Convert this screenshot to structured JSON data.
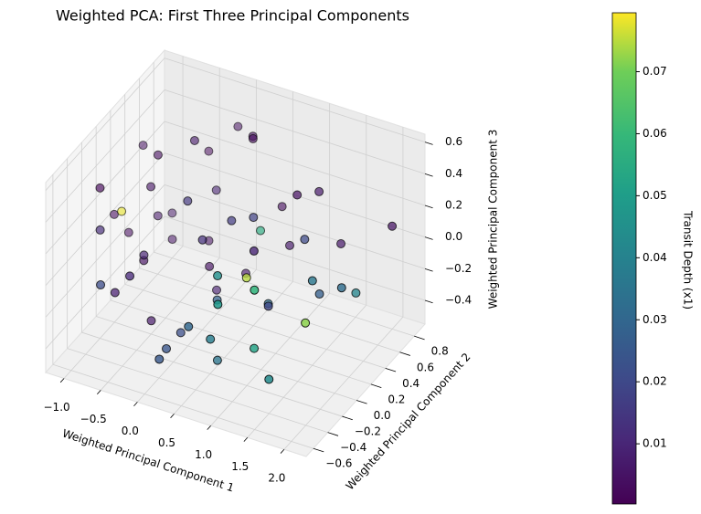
{
  "chart_data": {
    "type": "scatter3d",
    "title": "Weighted PCA: First Three Principal Components",
    "xlabel": "Weighted Principal Component 1",
    "ylabel": "Weighted Principal Component 2",
    "zlabel": "Weighted Principal Component 3",
    "x": [
      -1.1,
      -0.9,
      -0.7,
      -1.0,
      -0.8,
      -0.5,
      -0.3,
      -0.6,
      -1.2,
      -0.4,
      -0.2,
      0.0,
      0.2,
      -0.9,
      -0.6,
      -0.1,
      0.3,
      0.5,
      0.1,
      -0.7,
      -0.3,
      0.4,
      0.6,
      0.8,
      1.0,
      0.2,
      -0.5,
      0.7,
      0.9,
      1.2,
      1.4,
      1.1,
      0.5,
      0.0,
      -0.2,
      1.6,
      1.8,
      1.3,
      0.8,
      1.5,
      2.0,
      0.3,
      0.6,
      1.0,
      -0.8,
      -1.0,
      0.1,
      0.9,
      1.7,
      1.9,
      -0.4,
      0.4,
      1.2,
      0.7,
      -0.6,
      1.4,
      0.2,
      -1.1,
      0.5,
      1.0
    ],
    "y": [
      0.5,
      0.7,
      0.3,
      0.1,
      0.6,
      0.8,
      0.4,
      0.0,
      0.2,
      -0.1,
      0.6,
      0.3,
      0.7,
      -0.3,
      -0.4,
      0.1,
      0.5,
      0.8,
      -0.2,
      0.2,
      -0.5,
      0.0,
      0.3,
      0.6,
      0.5,
      -0.6,
      -0.1,
      -0.3,
      0.2,
      0.4,
      0.7,
      -0.2,
      -0.5,
      0.4,
      0.9,
      0.1,
      0.5,
      -0.4,
      0.0,
      0.3,
      0.8,
      0.6,
      -0.2,
      0.1,
      0.4,
      -0.2,
      -0.4,
      -0.5,
      -0.1,
      0.2,
      0.7,
      0.2,
      0.6,
      -0.4,
      -0.6,
      -0.3,
      0.0,
      0.3,
      0.5,
      -0.1
    ],
    "z": [
      0.3,
      -0.2,
      0.4,
      0.1,
      -0.3,
      0.2,
      0.5,
      -0.1,
      0.0,
      -0.4,
      0.1,
      -0.2,
      0.45,
      0.2,
      -0.1,
      0.3,
      -0.3,
      0.0,
      -0.35,
      0.25,
      0.1,
      -0.2,
      0.2,
      -0.1,
      0.3,
      -0.3,
      0.0,
      0.15,
      -0.25,
      0.1,
      -0.05,
      -0.3,
      -0.1,
      -0.4,
      0.35,
      0.05,
      -0.2,
      0.2,
      0.0,
      -0.15,
      0.1,
      0.5,
      -0.45,
      -0.2,
      -0.05,
      0.4,
      -0.35,
      0.1,
      -0.1,
      0.0,
      -0.3,
      0.2,
      0.3,
      -0.2,
      0.05,
      -0.4,
      0.15,
      -0.15,
      0.0,
      0.25
    ],
    "c": [
      0.004,
      0.006,
      0.003,
      0.078,
      0.005,
      0.002,
      0.007,
      0.004,
      0.003,
      0.006,
      0.009,
      0.005,
      0.004,
      0.012,
      0.008,
      0.015,
      0.006,
      0.003,
      0.022,
      0.005,
      0.011,
      0.028,
      0.018,
      0.007,
      0.004,
      0.025,
      0.009,
      0.045,
      0.033,
      0.02,
      0.006,
      0.052,
      0.03,
      0.008,
      0.004,
      0.036,
      0.041,
      0.058,
      0.075,
      0.027,
      0.005,
      0.003,
      0.035,
      0.019,
      0.006,
      0.002,
      0.024,
      0.048,
      0.072,
      0.032,
      0.004,
      0.016,
      0.007,
      0.038,
      0.021,
      0.043,
      0.013,
      0.003,
      0.055,
      0.01
    ],
    "xlim": [
      -1.25,
      2.3
    ],
    "ylim": [
      -0.7,
      0.95
    ],
    "zlim": [
      -0.55,
      0.65
    ],
    "xticks": [
      {
        "value": -1.0,
        "label": "−1.0"
      },
      {
        "value": -0.5,
        "label": "−0.5"
      },
      {
        "value": 0,
        "label": "0.0"
      },
      0.5,
      {
        "value": 1,
        "label": "1.0"
      },
      1.5,
      {
        "value": 2,
        "label": "2.0"
      }
    ],
    "yticks": [
      {
        "value": -0.6,
        "label": "−0.6"
      },
      {
        "value": -0.4,
        "label": "−0.4"
      },
      {
        "value": -0.2,
        "label": "−0.2"
      },
      {
        "value": 0,
        "label": "0.0"
      },
      0.2,
      0.4,
      0.6,
      0.8
    ],
    "zticks": [
      {
        "value": -0.4,
        "label": "−0.4"
      },
      {
        "value": -0.2,
        "label": "−0.2"
      },
      {
        "value": 0,
        "label": "0.0"
      },
      0.2,
      0.4,
      0.6
    ],
    "grid": true,
    "edgecolor": "#000000",
    "colorbar": {
      "label": "Transit Depth (x1)",
      "colormap": "viridis",
      "lim": [
        0.0003,
        0.0795
      ],
      "ticks": [
        0.01,
        0.02,
        0.03,
        0.04,
        0.05,
        0.06,
        0.07
      ]
    }
  }
}
